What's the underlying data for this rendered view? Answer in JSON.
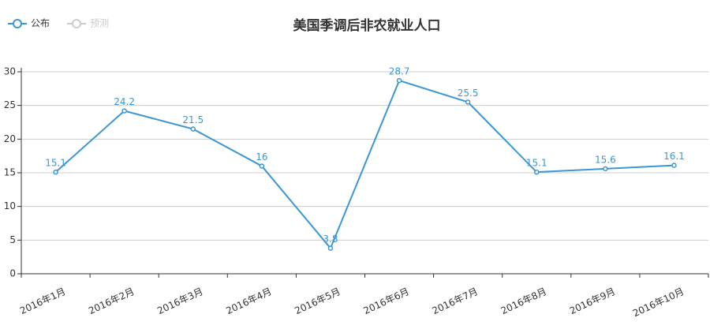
{
  "chart_data": {
    "type": "line",
    "title": "美国季调后非农就业人口",
    "categories": [
      "2016年1月",
      "2016年2月",
      "2016年3月",
      "2016年4月",
      "2016年5月",
      "2016年6月",
      "2016年7月",
      "2016年8月",
      "2016年9月",
      "2016年10月"
    ],
    "series": [
      {
        "name": "公布",
        "color": "#3a96d4",
        "values": [
          15.1,
          24.2,
          21.5,
          16,
          3.8,
          28.7,
          25.5,
          15.1,
          15.6,
          16.1
        ]
      },
      {
        "name": "预测",
        "color": "#cccccc",
        "values": [
          null,
          null,
          null,
          null,
          null,
          null,
          null,
          null,
          null,
          null
        ]
      }
    ],
    "ylim": [
      0,
      30
    ],
    "yticks": [
      0,
      5,
      10,
      15,
      20,
      25,
      30
    ],
    "grid": true
  }
}
